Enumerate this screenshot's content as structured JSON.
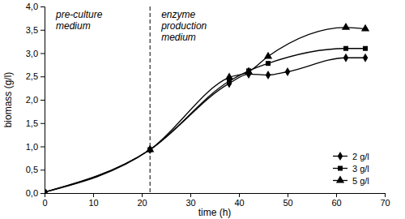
{
  "chart_data": {
    "type": "line",
    "xlabel": "time (h)",
    "ylabel": "biomass (g/l)",
    "xlim": [
      0,
      70
    ],
    "xticks": [
      0,
      10,
      20,
      30,
      40,
      50,
      60,
      70
    ],
    "ylim": [
      0,
      4
    ],
    "yticks": [
      {
        "value": 0,
        "label": "0,0"
      },
      {
        "value": 0.5,
        "label": "0,5"
      },
      {
        "value": 1,
        "label": "1,0"
      },
      {
        "value": 1.5,
        "label": "1,5"
      },
      {
        "value": 2,
        "label": "2,0"
      },
      {
        "value": 2.5,
        "label": "2,5"
      },
      {
        "value": 3,
        "label": "3,0"
      },
      {
        "value": 3.5,
        "label": "3,5"
      },
      {
        "value": 4,
        "label": "4,0"
      }
    ],
    "legend": "lower right",
    "vlines": [
      {
        "x": 21.7,
        "line_style": "dashed"
      }
    ],
    "annotations": [
      {
        "lines": [
          "pre-culture",
          "medium"
        ]
      },
      {
        "lines": [
          "enzyme",
          "production",
          "medium"
        ]
      }
    ],
    "series": [
      {
        "name": "2 g/l",
        "color": "#000000",
        "marker": "diamond",
        "line_style": "solid",
        "x": [
          0,
          21.7,
          38,
          42,
          46,
          50,
          62,
          66
        ],
        "values": [
          0.02,
          0.93,
          2.35,
          2.55,
          2.53,
          2.6,
          2.9,
          2.9
        ]
      },
      {
        "name": "3 g/l",
        "color": "#000000",
        "marker": "square",
        "line_style": "solid",
        "x": [
          0,
          21.7,
          38,
          42,
          46,
          62,
          66
        ],
        "values": [
          0.02,
          0.93,
          2.4,
          2.62,
          2.78,
          3.1,
          3.1
        ]
      },
      {
        "name": "5 g/l",
        "color": "#000000",
        "marker": "triangle",
        "line_style": "solid",
        "x": [
          0,
          21.7,
          38,
          42,
          46,
          62,
          66
        ],
        "values": [
          0.02,
          0.93,
          2.48,
          2.6,
          2.93,
          3.55,
          3.52
        ]
      }
    ]
  }
}
